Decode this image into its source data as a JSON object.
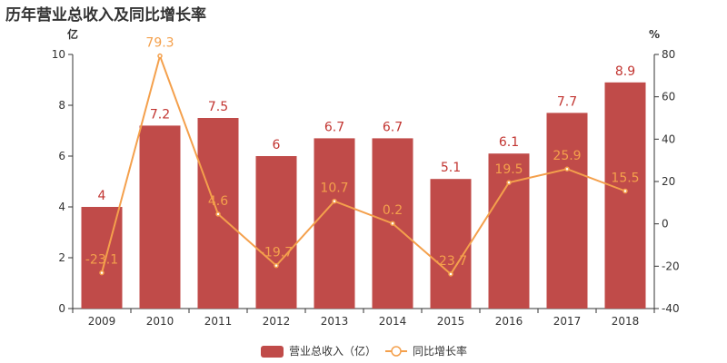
{
  "title": "历年营业总收入及同比增长率",
  "colors": {
    "bar": "#c04b49",
    "bar_label": "#c23531",
    "line": "#f4a04c",
    "axis": "#333333"
  },
  "chart_data": {
    "type": "bar",
    "title": "历年营业总收入及同比增长率",
    "categories": [
      "2009",
      "2010",
      "2011",
      "2012",
      "2013",
      "2014",
      "2015",
      "2016",
      "2017",
      "2018"
    ],
    "y_left": {
      "unit": "亿",
      "min": 0,
      "max": 10,
      "ticks": [
        "0",
        "2",
        "4",
        "6",
        "8",
        "10"
      ]
    },
    "y_right": {
      "unit": "%",
      "min": -40,
      "max": 80,
      "ticks": [
        "-40",
        "-20",
        "0",
        "20",
        "40",
        "60",
        "80"
      ]
    },
    "series": [
      {
        "name": "营业总收入（亿）",
        "type": "bar",
        "axis": "left",
        "values": [
          4,
          7.2,
          7.5,
          6,
          6.7,
          6.7,
          5.1,
          6.1,
          7.7,
          8.9
        ],
        "labels": [
          "4",
          "7.2",
          "7.5",
          "6",
          "6.7",
          "6.7",
          "5.1",
          "6.1",
          "7.7",
          "8.9"
        ]
      },
      {
        "name": "同比增长率",
        "type": "line",
        "axis": "right",
        "values": [
          -23.1,
          79.3,
          4.6,
          -19.7,
          10.7,
          0.2,
          -23.7,
          19.5,
          25.9,
          15.5
        ],
        "labels": [
          "-23.1",
          "79.3",
          "4.6",
          "-19.7",
          "10.7",
          "0.2",
          "-23.7",
          "19.5",
          "25.9",
          "15.5"
        ]
      }
    ],
    "legend": {
      "position": "bottom-center",
      "items": [
        "营业总收入（亿）",
        "同比增长率"
      ]
    },
    "grid": false
  }
}
